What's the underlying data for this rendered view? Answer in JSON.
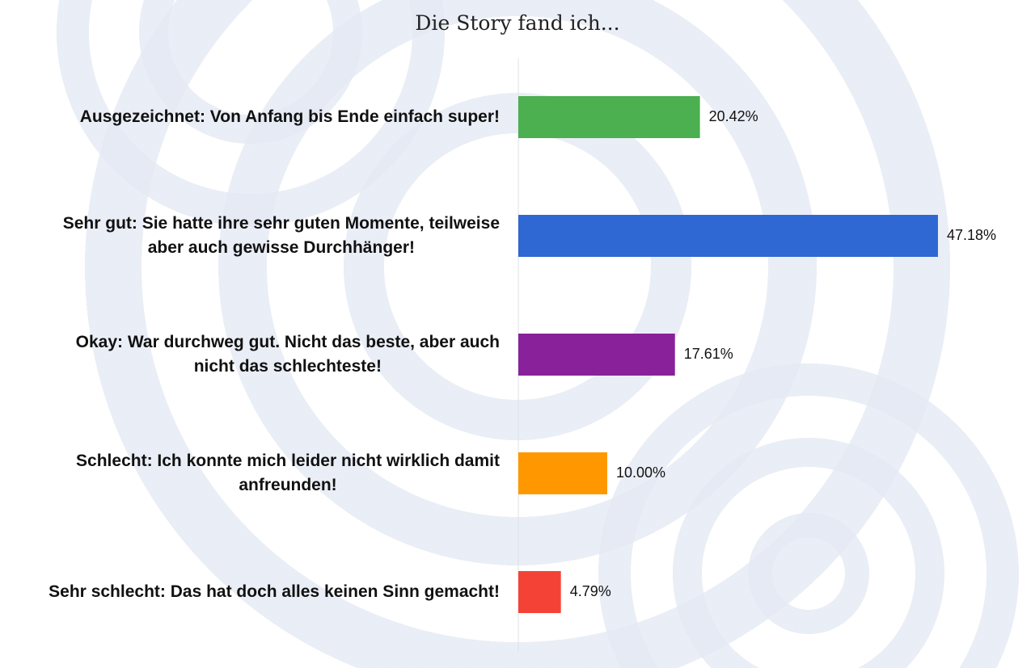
{
  "chart_data": {
    "type": "bar",
    "orientation": "horizontal",
    "title": "Die Story fand ich...",
    "xlabel": "",
    "ylabel": "",
    "xlim": [
      0,
      57
    ],
    "grid": false,
    "categories": [
      [
        "Ausgezeichnet: Von Anfang bis Ende einfach super!"
      ],
      [
        "Sehr gut: Sie hatte ihre sehr guten Momente, teilweise",
        "aber auch gewisse Durchhänger!"
      ],
      [
        "Okay: War durchweg gut. Nicht das beste, aber auch",
        "nicht das schlechteste!"
      ],
      [
        "Schlecht: Ich konnte mich leider nicht wirklich damit",
        "anfreunden!"
      ],
      [
        "Sehr schlecht: Das hat doch alles keinen Sinn gemacht!"
      ]
    ],
    "values": [
      20.42,
      47.18,
      17.61,
      10.0,
      4.79
    ],
    "value_labels": [
      "20.42%",
      "47.18%",
      "17.61%",
      "10.00%",
      "4.79%"
    ],
    "colors": [
      "#4caf50",
      "#2f67d3",
      "#89219a",
      "#ff9800",
      "#f44336"
    ]
  }
}
